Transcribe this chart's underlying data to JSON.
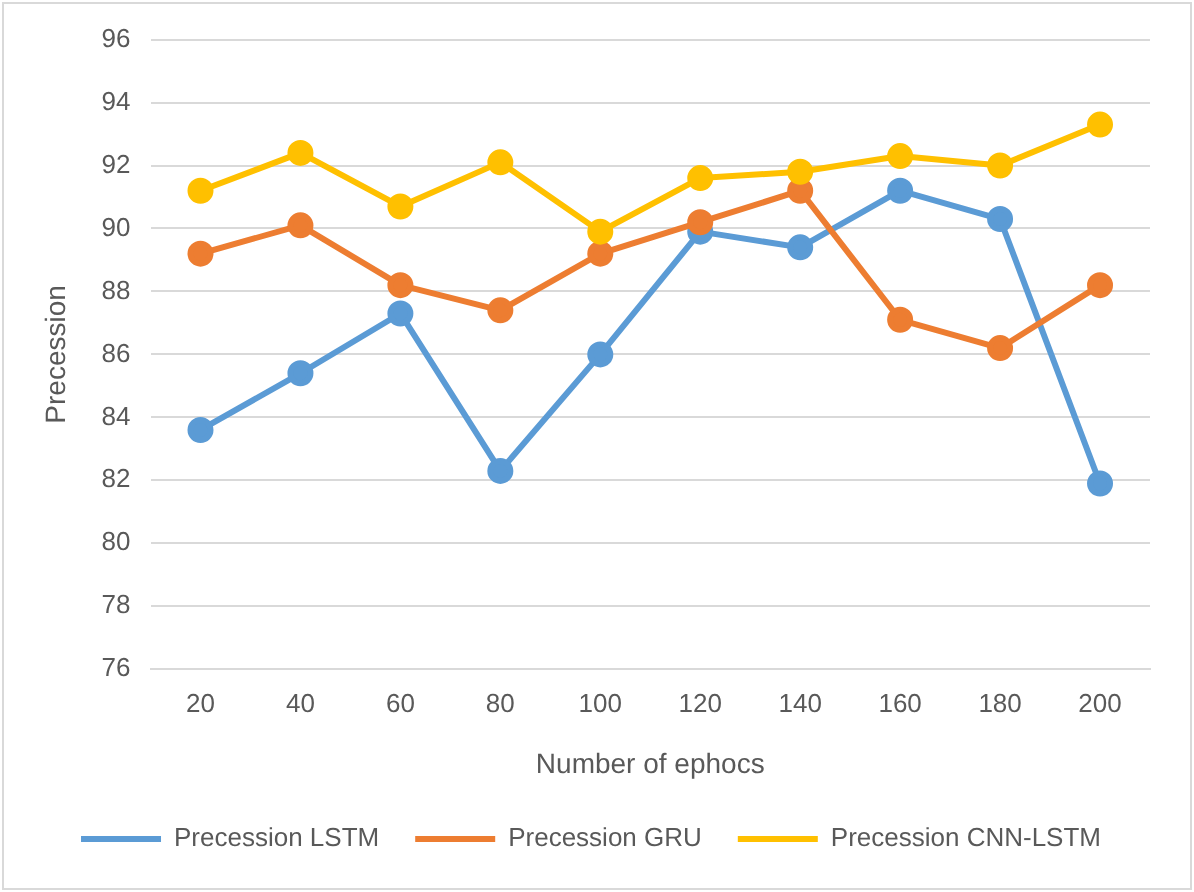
{
  "chart_data": {
    "type": "line",
    "xlabel": "Number of ephocs",
    "ylabel": "Precession",
    "categories": [
      "20",
      "40",
      "60",
      "80",
      "100",
      "120",
      "140",
      "160",
      "180",
      "200"
    ],
    "series": [
      {
        "name": "Precession LSTM",
        "color": "#5b9bd5",
        "values": [
          83.6,
          85.4,
          87.3,
          82.3,
          86.0,
          89.9,
          89.4,
          91.2,
          90.3,
          81.9
        ]
      },
      {
        "name": "Precession GRU",
        "color": "#ed7d31",
        "values": [
          89.2,
          90.1,
          88.2,
          87.4,
          89.2,
          90.2,
          91.2,
          87.1,
          86.2,
          88.2
        ]
      },
      {
        "name": "Precession CNN-LSTM",
        "color": "#ffc000",
        "values": [
          91.2,
          92.4,
          90.7,
          92.1,
          89.9,
          91.6,
          91.8,
          92.3,
          92.0,
          93.3
        ]
      }
    ],
    "ylim": [
      76,
      96
    ],
    "yticks": [
      76,
      78,
      80,
      82,
      84,
      86,
      88,
      90,
      92,
      94,
      96
    ],
    "grid": "y",
    "legend": "bottom",
    "marker": "circle",
    "line_style": "solid"
  }
}
